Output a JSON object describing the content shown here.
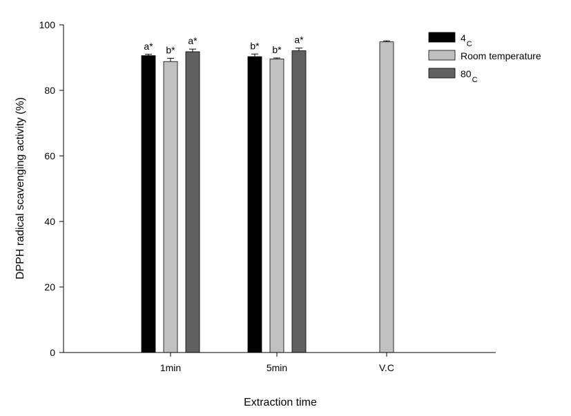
{
  "chart_data": {
    "type": "bar",
    "categories": [
      "1min",
      "5min",
      "V.C"
    ],
    "series": [
      {
        "name": "4",
        "name_sub": "C",
        "color": "#000000",
        "values": [
          90.6,
          90.3,
          null
        ],
        "errors": [
          0.4,
          0.8,
          null
        ],
        "labels": [
          "a*",
          "b*",
          null
        ]
      },
      {
        "name": "Room temperature",
        "name_sub": "",
        "color": "#c0c0c0",
        "values": [
          88.8,
          89.6,
          94.8
        ],
        "errors": [
          1.0,
          0.3,
          0.3
        ],
        "labels": [
          "b*",
          "b*",
          null
        ]
      },
      {
        "name": "80",
        "name_sub": "C",
        "color": "#606060",
        "values": [
          91.8,
          92.1,
          null
        ],
        "errors": [
          0.8,
          0.8,
          null
        ],
        "labels": [
          "a*",
          "a*",
          null
        ]
      }
    ],
    "title": "",
    "xlabel": "Extraction time",
    "ylabel": "DPPH radical scavenging activity (%)",
    "ylim": [
      0,
      100
    ],
    "yticks": [
      0,
      20,
      40,
      60,
      80,
      100
    ],
    "grid": false,
    "legend_position": "top-right"
  }
}
